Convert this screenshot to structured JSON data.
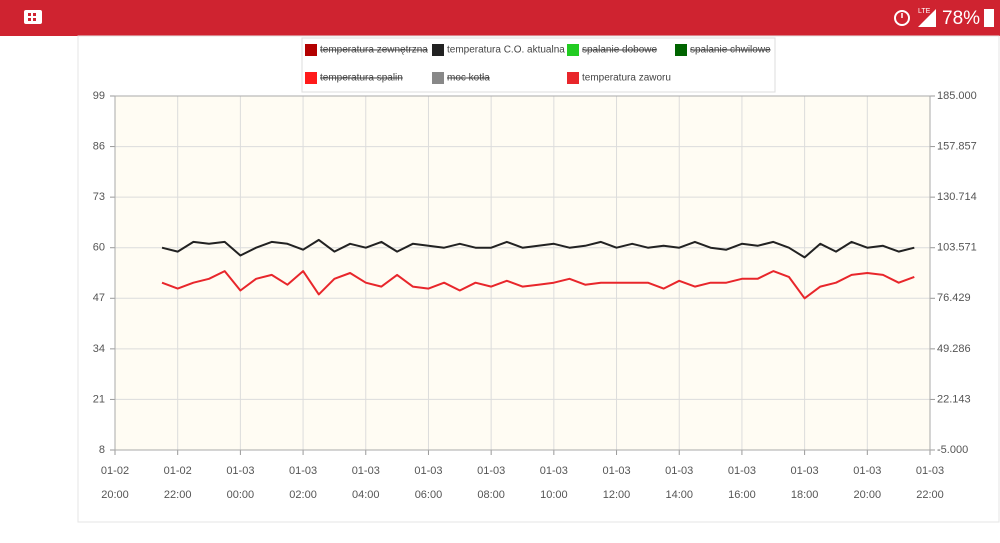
{
  "status_bar": {
    "battery": "78%",
    "network": "LTE"
  },
  "chart_data": {
    "type": "line",
    "legend": "top",
    "grid": true,
    "ylim": [
      8,
      99
    ],
    "yticks": [
      8,
      21,
      34,
      47,
      60,
      73,
      86,
      99
    ],
    "y2lim": [
      -5,
      185
    ],
    "y2ticks": [
      {
        "value": -5,
        "label": "-5.000"
      },
      {
        "value": 22.143,
        "label": "22.143"
      },
      {
        "value": 49.286,
        "label": "49.286"
      },
      {
        "value": 76.429,
        "label": "76.429"
      },
      {
        "value": 103.571,
        "label": "103.571"
      },
      {
        "value": 130.714,
        "label": "130.714"
      },
      {
        "value": 157.857,
        "label": "157.857"
      },
      {
        "value": 185,
        "label": "185.000"
      }
    ],
    "xticks": [
      {
        "date": "01-02",
        "time": "20:00"
      },
      {
        "date": "01-02",
        "time": "22:00"
      },
      {
        "date": "01-03",
        "time": "00:00"
      },
      {
        "date": "01-03",
        "time": "02:00"
      },
      {
        "date": "01-03",
        "time": "04:00"
      },
      {
        "date": "01-03",
        "time": "06:00"
      },
      {
        "date": "01-03",
        "time": "08:00"
      },
      {
        "date": "01-03",
        "time": "10:00"
      },
      {
        "date": "01-03",
        "time": "12:00"
      },
      {
        "date": "01-03",
        "time": "14:00"
      },
      {
        "date": "01-03",
        "time": "16:00"
      },
      {
        "date": "01-03",
        "time": "18:00"
      },
      {
        "date": "01-03",
        "time": "20:00"
      },
      {
        "date": "01-03",
        "time": "22:00"
      }
    ],
    "x": [
      "01-02 21:30",
      "01-02 22:00",
      "01-02 22:30",
      "01-02 23:00",
      "01-02 23:30",
      "01-03 00:00",
      "01-03 00:30",
      "01-03 01:00",
      "01-03 01:30",
      "01-03 02:00",
      "01-03 02:30",
      "01-03 03:00",
      "01-03 03:30",
      "01-03 04:00",
      "01-03 04:30",
      "01-03 05:00",
      "01-03 05:30",
      "01-03 06:00",
      "01-03 06:30",
      "01-03 07:00",
      "01-03 07:30",
      "01-03 08:00",
      "01-03 08:30",
      "01-03 09:00",
      "01-03 09:30",
      "01-03 10:00",
      "01-03 10:30",
      "01-03 11:00",
      "01-03 11:30",
      "01-03 12:00",
      "01-03 12:30",
      "01-03 13:00",
      "01-03 13:30",
      "01-03 14:00",
      "01-03 14:30",
      "01-03 15:00",
      "01-03 15:30",
      "01-03 16:00",
      "01-03 16:30",
      "01-03 17:00",
      "01-03 17:30",
      "01-03 18:00",
      "01-03 18:30",
      "01-03 19:00",
      "01-03 19:30",
      "01-03 20:00",
      "01-03 20:30",
      "01-03 21:00",
      "01-03 21:30"
    ],
    "series": [
      {
        "name": "temperatura zewnętrzna",
        "color": "#b30000",
        "hidden": true
      },
      {
        "name": "temperatura C.O. aktualna",
        "color": "#222222",
        "values": [
          60,
          59,
          61.5,
          61,
          61.5,
          58,
          60,
          61.5,
          61,
          59.5,
          62,
          59,
          61,
          60,
          61.5,
          59,
          61,
          60.5,
          60,
          61,
          60,
          60,
          61.5,
          60,
          60.5,
          61,
          60,
          60.5,
          61.5,
          60,
          61,
          60,
          60.5,
          60,
          61.5,
          60,
          59.5,
          61,
          60.5,
          61.5,
          60,
          57.5,
          61,
          59,
          61.5,
          60,
          60.5,
          59,
          60
        ]
      },
      {
        "name": "spalanie dobowe",
        "color": "#22cc22",
        "hidden": true
      },
      {
        "name": "spalanie chwilowe",
        "color": "#006400",
        "hidden": true
      },
      {
        "name": "temperatura spalin",
        "color": "#ff1a1a",
        "hidden": true
      },
      {
        "name": "moc kotła",
        "color": "#888888",
        "hidden": true
      },
      {
        "name": "temperatura zaworu",
        "color": "#e8262b",
        "values": [
          51,
          49.5,
          51,
          52,
          54,
          49,
          52,
          53,
          50.5,
          54,
          48,
          52,
          53.5,
          51,
          50,
          53,
          50,
          49.5,
          51,
          49,
          51,
          50,
          51.5,
          50,
          50.5,
          51,
          52,
          50.5,
          51,
          51,
          51,
          51,
          49.5,
          51.5,
          50,
          51,
          51,
          52,
          52,
          54,
          52.5,
          47,
          50,
          51,
          53,
          53.5,
          53,
          51,
          52.5
        ]
      }
    ]
  }
}
